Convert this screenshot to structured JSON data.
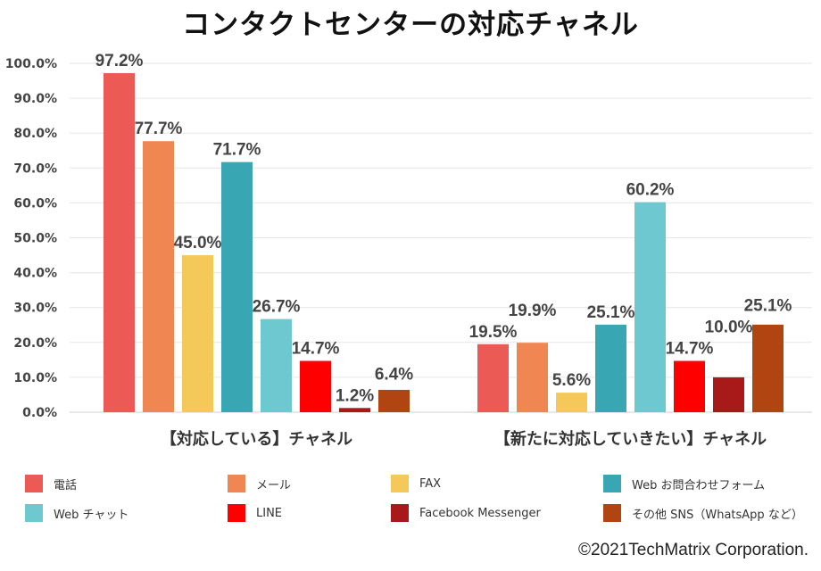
{
  "chart_data": {
    "type": "bar",
    "title": "コンタクトセンターの対応チャネル",
    "categories": [
      "【対応している】チャネル",
      "【新たに対応していきたい】チャネル"
    ],
    "series": [
      {
        "name": "電話",
        "color": "#EB5A55",
        "values": [
          97.2,
          19.5
        ]
      },
      {
        "name": "メール",
        "color": "#F08752",
        "values": [
          77.7,
          19.9
        ]
      },
      {
        "name": "FAX",
        "color": "#F5C85A",
        "values": [
          45.0,
          5.6
        ]
      },
      {
        "name": "Web お問合わせフォーム",
        "color": "#39A6B3",
        "values": [
          71.7,
          25.1
        ]
      },
      {
        "name": "Web チャット",
        "color": "#6EC8D0",
        "values": [
          26.7,
          60.2
        ]
      },
      {
        "name": "LINE",
        "color": "#FF0000",
        "values": [
          14.7,
          14.7
        ]
      },
      {
        "name": "Facebook Messenger",
        "color": "#A8191A",
        "values": [
          1.2,
          10.0
        ]
      },
      {
        "name": "その他 SNS（WhatsApp など）",
        "color": "#B04512",
        "values": [
          6.4,
          25.1
        ]
      }
    ],
    "data_labels": [
      [
        "97.2%",
        "77.7%",
        "45.0%",
        "71.7%",
        "26.7%",
        "14.7%",
        "1.2%",
        "6.4%"
      ],
      [
        "19.5%",
        "19.9%",
        "5.6%",
        "25.1%",
        "60.2%",
        "14.7%",
        "10.0%",
        "25.1%"
      ]
    ],
    "yticks": [
      "0.0%",
      "10.0%",
      "20.0%",
      "30.0%",
      "40.0%",
      "50.0%",
      "60.0%",
      "70.0%",
      "80.0%",
      "90.0%",
      "100.0%"
    ],
    "ylim": [
      0,
      100
    ],
    "xlabel": "",
    "ylabel": "",
    "grid": true,
    "legend_position": "bottom"
  },
  "copyright": "©2021TechMatrix Corporation."
}
